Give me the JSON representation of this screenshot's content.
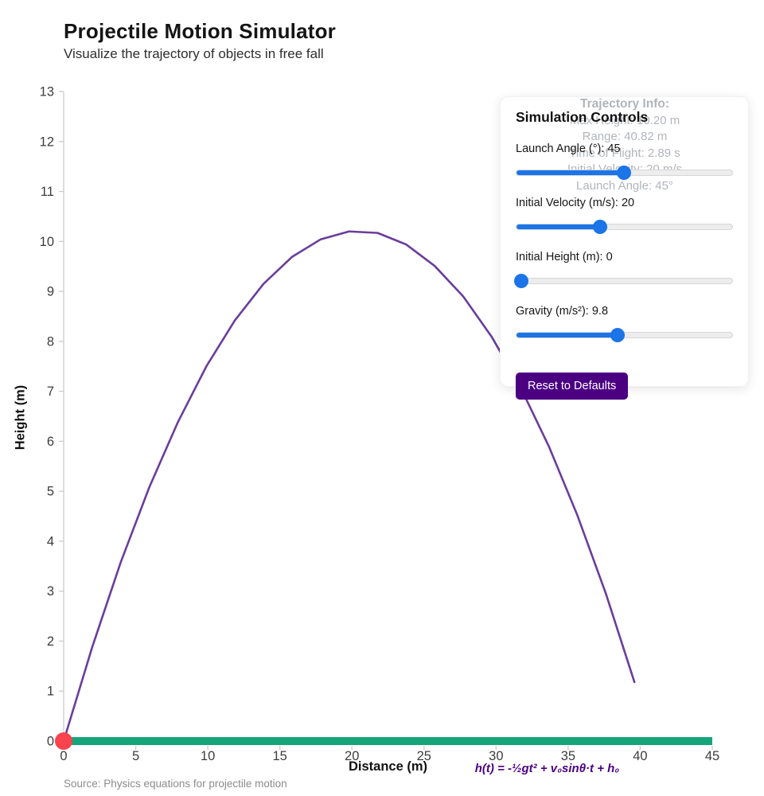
{
  "header": {
    "title": "Projectile Motion Simulator",
    "subtitle": "Visualize the trajectory of objects in free fall"
  },
  "chart_data": {
    "type": "line",
    "xlabel": "Distance (m)",
    "ylabel": "Height (m)",
    "xlim": [
      0,
      45
    ],
    "ylim": [
      0,
      13
    ],
    "x_ticks": [
      0,
      5,
      10,
      15,
      20,
      25,
      30,
      35,
      40,
      45
    ],
    "y_ticks": [
      0,
      1,
      2,
      3,
      4,
      5,
      6,
      7,
      8,
      9,
      10,
      11,
      12,
      13
    ],
    "grid": false,
    "series": [
      {
        "name": "trajectory",
        "color": "#6a3d9a",
        "points": [
          [
            0,
            0
          ],
          [
            1.98,
            1.88
          ],
          [
            3.96,
            3.58
          ],
          [
            5.94,
            5.08
          ],
          [
            7.92,
            6.38
          ],
          [
            9.9,
            7.5
          ],
          [
            11.88,
            8.42
          ],
          [
            13.86,
            9.15
          ],
          [
            15.84,
            9.69
          ],
          [
            17.82,
            10.04
          ],
          [
            19.8,
            10.2
          ],
          [
            21.78,
            10.17
          ],
          [
            23.76,
            9.94
          ],
          [
            25.74,
            9.51
          ],
          [
            27.72,
            8.9
          ],
          [
            29.7,
            8.09
          ],
          [
            31.68,
            7.09
          ],
          [
            33.66,
            5.9
          ],
          [
            35.64,
            4.52
          ],
          [
            37.62,
            2.95
          ],
          [
            39.6,
            1.18
          ]
        ]
      }
    ],
    "ground_line": {
      "y": 0,
      "color": "#16a57a"
    },
    "projectile": {
      "x": 0,
      "y": 0,
      "color": "#f9434e"
    },
    "axis_color": "#cccccc",
    "tick_label_color": "#3d3d3d"
  },
  "trajectory_info": {
    "lines": [
      "Trajectory Info:",
      "Max Height: 10.20 m",
      "Range: 40.82 m",
      "Time of Flight: 2.89 s",
      "Initial Velocity: 20 m/s",
      "Launch Angle: 45°"
    ]
  },
  "controls": {
    "title": "Simulation Controls",
    "sliders": [
      {
        "name": "launch-angle",
        "display": "Launch Angle (°): 45",
        "percent": 49.8
      },
      {
        "name": "initial-velocity",
        "display": "Initial Velocity (m/s): 20",
        "percent": 39.0
      },
      {
        "name": "initial-height",
        "display": "Initial Height (m): 0",
        "percent": 2.5
      },
      {
        "name": "gravity",
        "display": "Gravity (m/s²): 9.8",
        "percent": 46.9
      }
    ],
    "reset_label": "Reset to Defaults",
    "accent_color": "#1b74e8",
    "button_color": "#4b0082"
  },
  "footer": {
    "source": "Source: Physics equations for projectile motion",
    "formula": "h(t) = -½gt² + v₀sinθ·t + h₀"
  }
}
